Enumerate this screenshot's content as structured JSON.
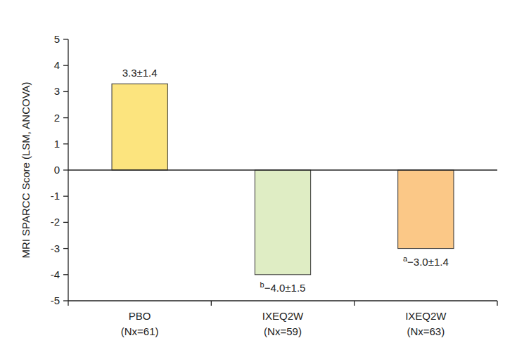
{
  "chart_data": {
    "type": "bar",
    "ylabel": "MRI SPARCC Score (LSM, ANCOVA)",
    "categories": [
      "PBO\n(Nx=61)",
      "IXEQ2W\n(Nx=59)",
      "IXEQ2W\n(Nx=63)"
    ],
    "values": [
      3.3,
      -4.0,
      -3.0
    ],
    "value_labels": [
      "3.3±1.4",
      "b−4.0±1.5",
      "a−3.0±1.4"
    ],
    "colors": [
      "#fce47e",
      "#dfedc4",
      "#fbc887"
    ],
    "ylim": [
      -5,
      5
    ],
    "yticks": [
      -5,
      -4,
      -3,
      -2,
      -1,
      0,
      1,
      2,
      3,
      4,
      5
    ],
    "data_labels": true,
    "grid": false
  }
}
